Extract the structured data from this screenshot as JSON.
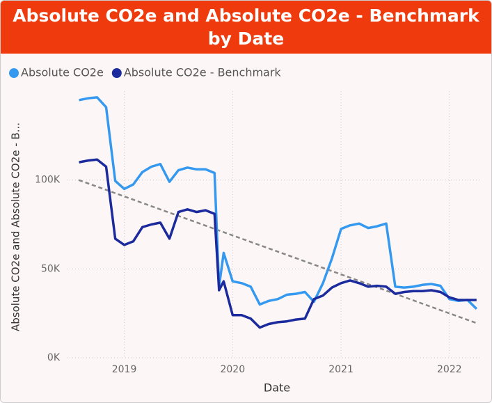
{
  "chart_data": {
    "type": "line",
    "title": "Absolute CO2e and Absolute CO2e - Benchmark by Date",
    "x_label": "Date",
    "y_label": "Absolute CO2e and Absolute CO2e - B...",
    "x": [
      2018.583,
      2018.667,
      2018.75,
      2018.833,
      2018.917,
      2019,
      2019.083,
      2019.167,
      2019.25,
      2019.333,
      2019.417,
      2019.5,
      2019.583,
      2019.667,
      2019.75,
      2019.833,
      2019.875,
      2019.917,
      2020,
      2020.083,
      2020.167,
      2020.25,
      2020.333,
      2020.417,
      2020.5,
      2020.583,
      2020.667,
      2020.75,
      2020.833,
      2020.917,
      2021,
      2021.083,
      2021.167,
      2021.25,
      2021.333,
      2021.417,
      2021.5,
      2021.583,
      2021.667,
      2021.75,
      2021.833,
      2021.917,
      2022,
      2022.083,
      2022.167,
      2022.25
    ],
    "series": [
      {
        "name": "Absolute CO2e",
        "color": "#3599f0",
        "values": [
          145000,
          146000,
          146500,
          141000,
          99500,
          95000,
          97500,
          104500,
          107500,
          109000,
          99000,
          105500,
          107000,
          106000,
          106000,
          104000,
          40000,
          59000,
          43000,
          42000,
          40000,
          30000,
          32000,
          33000,
          35500,
          36000,
          37000,
          31500,
          42000,
          56000,
          72500,
          74500,
          75500,
          73000,
          74000,
          75500,
          40000,
          39500,
          40000,
          41000,
          41500,
          40500,
          33000,
          32000,
          32500,
          27500
        ]
      },
      {
        "name": "Absolute CO2e - Benchmark",
        "color": "#1b2a9c",
        "values": [
          110000,
          111000,
          111500,
          107500,
          67000,
          63500,
          65500,
          73500,
          75000,
          76000,
          67000,
          82000,
          83500,
          82000,
          83000,
          81000,
          38000,
          43000,
          24000,
          24000,
          22000,
          17000,
          19000,
          20000,
          20500,
          21500,
          22000,
          33000,
          35000,
          39500,
          42000,
          43500,
          42000,
          40000,
          40500,
          40000,
          36000,
          37000,
          37500,
          37500,
          38000,
          37000,
          34000,
          32500,
          32500,
          32500
        ]
      }
    ],
    "trendline": {
      "x": [
        2018.58,
        2022.25
      ],
      "values": [
        100000,
        19500
      ],
      "color": "#888888"
    },
    "xlim": [
      2018.47,
      2022.29
    ],
    "xticks": [
      2019,
      2020,
      2021,
      2022
    ],
    "ylim": [
      0,
      150000
    ],
    "yticks": [
      {
        "value": 0,
        "label": "0K"
      },
      {
        "value": 50000,
        "label": "50K"
      },
      {
        "value": 100000,
        "label": "100K"
      }
    ],
    "grid": true,
    "legend": "top-left"
  }
}
